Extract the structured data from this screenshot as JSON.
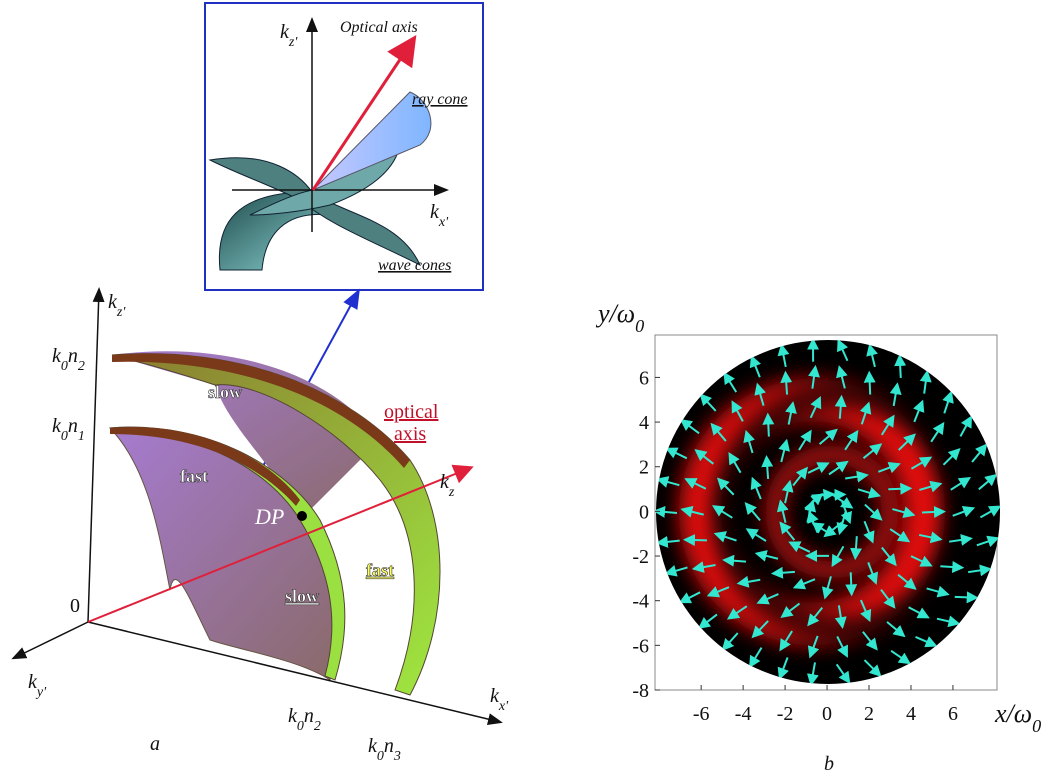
{
  "inset": {
    "axis_kz": [
      [
        "k",
        "z'"
      ]
    ],
    "axis_kx": [
      [
        "k",
        "x'"
      ]
    ],
    "optical_axis": "Optical axis",
    "ray_cone": "ray cone",
    "wave_cones": "wave cones"
  },
  "panel_a": {
    "label": "a",
    "origin": "0",
    "axis_kz": [
      [
        "k",
        "z'"
      ]
    ],
    "axis_kx": [
      [
        "k",
        "x'"
      ]
    ],
    "axis_ky": [
      [
        "k",
        "y'"
      ]
    ],
    "axis_k_z": [
      [
        "k",
        "z"
      ]
    ],
    "k0n2_left": [
      [
        "k",
        "0"
      ],
      [
        "n",
        "2"
      ]
    ],
    "k0n1": [
      [
        "k",
        "0"
      ],
      [
        "n",
        "1"
      ]
    ],
    "k0n2_bottom": [
      [
        "k",
        "0"
      ],
      [
        "n",
        "2"
      ]
    ],
    "k0n3": [
      [
        "k",
        "0"
      ],
      [
        "n",
        "3"
      ]
    ],
    "optical_axis": [
      "optical",
      "axis"
    ],
    "dp": "DP",
    "slow_top": "slow",
    "fast_left": "fast",
    "slow_bottom": "slow",
    "fast_right": "fast"
  },
  "panel_b": {
    "label": "b",
    "y_label": [
      [
        "y/ω",
        "0"
      ]
    ],
    "x_label": [
      [
        "x/ω",
        "0"
      ]
    ],
    "xlim": [
      -8.2,
      8.1
    ],
    "ylim": [
      -8,
      7.9
    ],
    "xticks": [
      -6,
      -4,
      -2,
      0,
      2,
      4,
      6
    ],
    "yticks": [
      -8,
      -6,
      -4,
      -2,
      0,
      2,
      4,
      6
    ]
  }
}
